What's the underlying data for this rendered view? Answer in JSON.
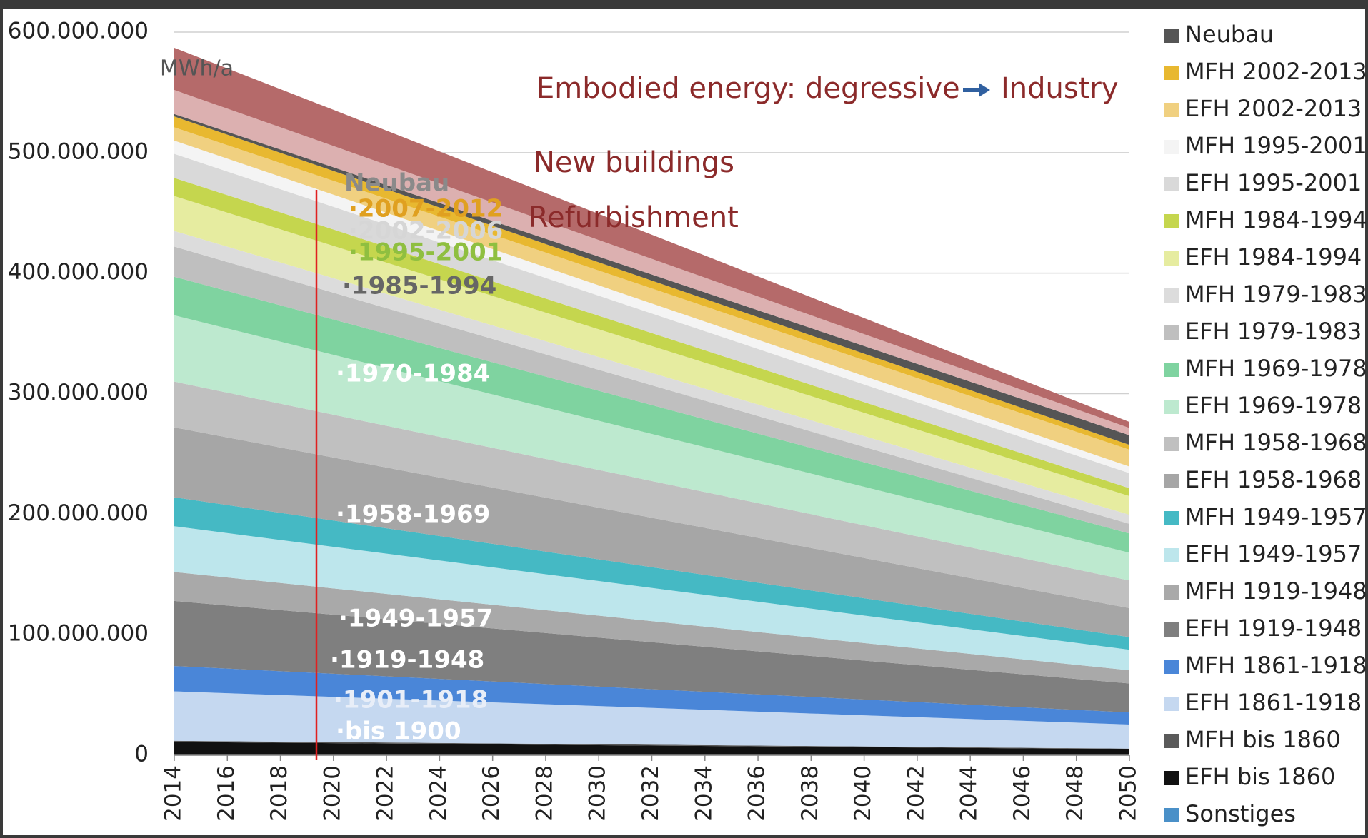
{
  "chart_data": {
    "type": "stacked_area",
    "y_label": "MWh/a",
    "annotations": [
      "Embodied energy: degressive",
      "Industry",
      "Neubau",
      "·2007-2012",
      "·2002-2006",
      "·1995-2001",
      "·1985-1994",
      "·1970-1984",
      "·1958-1969",
      "·1949-1957",
      "·1919-1948",
      "·1901-1918",
      "·bis 1900"
    ],
    "x": [
      2014,
      2020,
      2030,
      2040,
      2050
    ],
    "xlim": [
      2014,
      2050
    ],
    "xticks": [
      2014,
      2016,
      2018,
      2020,
      2022,
      2024,
      2026,
      2028,
      2030,
      2032,
      2034,
      2036,
      2038,
      2040,
      2042,
      2044,
      2046,
      2048,
      2050
    ],
    "ylim": [
      0,
      600000000
    ],
    "yticks": [
      {
        "value": 0,
        "label": "0"
      },
      {
        "value": 100000000,
        "label": "100.000.000"
      },
      {
        "value": 200000000,
        "label": "200.000.000"
      },
      {
        "value": 300000000,
        "label": "300.000.000"
      },
      {
        "value": 400000000,
        "label": "400.000.000"
      },
      {
        "value": 500000000,
        "label": "500.000.000"
      },
      {
        "value": 600000000,
        "label": "600.000.000"
      }
    ],
    "grid": true,
    "legend": "right",
    "series": [
      {
        "name": "New buildings",
        "legend": false,
        "color": "#b56a6a",
        "values": [
          35000000,
          30000000,
          21700000,
          13300000,
          5000000
        ]
      },
      {
        "name": "Refurbishment",
        "legend": false,
        "color": "#dcb0b0",
        "values": [
          20000000,
          17700000,
          13800000,
          9900000,
          6000000
        ]
      },
      {
        "name": "Neubau",
        "color": "#555555",
        "values": [
          2000000,
          3000000,
          4700000,
          6300000,
          8000000
        ]
      },
      {
        "name": "MFH 2002-2013",
        "color": "#e8b830",
        "values": [
          9000000,
          8200000,
          6800000,
          5400000,
          4000000
        ]
      },
      {
        "name": "EFH 2002-2013",
        "color": "#f0d080",
        "values": [
          11000000,
          11500000,
          12300000,
          13200000,
          14000000
        ]
      },
      {
        "name": "MFH 1995-2001",
        "color": "#f4f4f4",
        "values": [
          11000000,
          10100000,
          8600000,
          7000000,
          5500000
        ]
      },
      {
        "name": "EFH 1995-2001",
        "color": "#d9d9d9",
        "values": [
          20000000,
          18800000,
          16700000,
          14600000,
          12500000
        ]
      },
      {
        "name": "MFH 1984-1994",
        "color": "#c5d64e",
        "values": [
          15000000,
          13600000,
          11200000,
          8900000,
          6500000
        ]
      },
      {
        "name": "EFH 1984-1994",
        "color": "#e6eca0",
        "values": [
          29000000,
          26800000,
          23000000,
          19300000,
          15500000
        ]
      },
      {
        "name": "MFH 1979-1983",
        "color": "#dcdcdc",
        "values": [
          13000000,
          12100000,
          10600000,
          9000000,
          7500000
        ]
      },
      {
        "name": "EFH 1979-1983",
        "color": "#bfbfbf",
        "values": [
          25000000,
          22200000,
          17400000,
          12700000,
          8000000
        ]
      },
      {
        "name": "MFH 1969-1978",
        "color": "#7fd3a0",
        "values": [
          32000000,
          29300000,
          24900000,
          20400000,
          16000000
        ]
      },
      {
        "name": "EFH 1969-1978",
        "color": "#bde9cf",
        "values": [
          55000000,
          49700000,
          40800000,
          31900000,
          23000000
        ]
      },
      {
        "name": "MFH 1958-1968",
        "color": "#c0c0c0",
        "values": [
          38000000,
          35500000,
          31300000,
          27200000,
          23000000
        ]
      },
      {
        "name": "EFH 1958-1968",
        "color": "#a6a6a6",
        "values": [
          58000000,
          52300000,
          42900000,
          33400000,
          24000000
        ]
      },
      {
        "name": "MFH 1949-1957",
        "color": "#45b9c4",
        "values": [
          24000000,
          21800000,
          18000000,
          14300000,
          10500000
        ]
      },
      {
        "name": "EFH 1949-1957",
        "color": "#bde6ec",
        "values": [
          38000000,
          34500000,
          28700000,
          22800000,
          17000000
        ]
      },
      {
        "name": "MFH 1919-1948",
        "color": "#a9a9a9",
        "values": [
          24000000,
          21800000,
          18200000,
          14600000,
          11000000
        ]
      },
      {
        "name": "EFH 1919-1948",
        "color": "#7f7f7f",
        "values": [
          54000000,
          49000000,
          40700000,
          32300000,
          24000000
        ]
      },
      {
        "name": "MFH 1861-1918",
        "color": "#4a86d8",
        "values": [
          21000000,
          19200000,
          16100000,
          13100000,
          10000000
        ]
      },
      {
        "name": "EFH 1861-1918",
        "color": "#c5d8f0",
        "values": [
          41000000,
          37500000,
          31700000,
          25800000,
          20000000
        ]
      },
      {
        "name": "MFH bis 1860",
        "color": "#5a5a5a",
        "values": [
          1000000,
          900000,
          800000,
          600000,
          500000
        ]
      },
      {
        "name": "EFH bis 1860",
        "color": "#111111",
        "values": [
          11000000,
          10000000,
          8300000,
          6700000,
          5000000
        ]
      },
      {
        "name": "Sonstiges",
        "color": "#4a90c8",
        "values": [
          0,
          0,
          0,
          0,
          0
        ]
      }
    ]
  }
}
